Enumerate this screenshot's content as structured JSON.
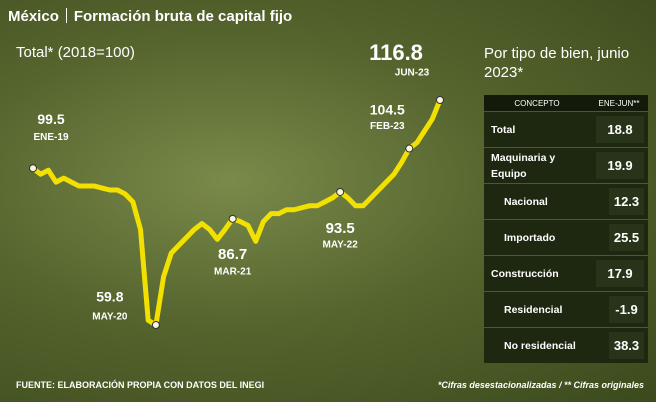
{
  "header": {
    "country": "México",
    "title": "Formación bruta de capital fijo"
  },
  "chart_data": {
    "type": "line",
    "subtitle": "Total* (2018=100)",
    "color": "#f2e000",
    "categories": [
      "ENE-19",
      null,
      null,
      null,
      null,
      null,
      null,
      null,
      null,
      null,
      null,
      null,
      null,
      null,
      null,
      null,
      "MAY-20",
      null,
      null,
      null,
      null,
      null,
      null,
      null,
      null,
      null,
      "MAR-21",
      null,
      null,
      null,
      null,
      null,
      null,
      null,
      null,
      null,
      null,
      null,
      null,
      null,
      "MAY-22",
      null,
      null,
      null,
      null,
      null,
      null,
      null,
      null,
      "FEB-23",
      null,
      null,
      null,
      "JUN-23"
    ],
    "values": [
      99.5,
      98,
      99,
      96,
      97,
      96,
      95,
      95,
      95,
      94.5,
      94,
      94,
      93,
      91,
      84,
      61,
      59.8,
      72,
      78,
      80,
      82,
      84,
      85.5,
      84,
      81.5,
      84,
      86.7,
      86,
      85,
      81,
      86,
      88,
      88,
      89,
      89,
      89.5,
      90,
      90,
      91,
      92,
      93.5,
      92,
      90,
      90,
      92,
      94,
      96,
      98,
      101,
      104.5,
      106,
      109,
      112,
      116.8
    ]
  },
  "table": {
    "title": "Por tipo de bien, junio 2023*",
    "columns": [
      "CONCEPTO",
      "ENE-JUN**"
    ],
    "rows": [
      [
        "Total",
        "18.8"
      ],
      [
        "Maquinaria y Equipo",
        "19.9"
      ],
      [
        "Nacional",
        "12.3"
      ],
      [
        "Importado",
        "25.5"
      ],
      [
        "Construcción",
        "17.9"
      ],
      [
        "Residencial",
        "-1.9"
      ],
      [
        "No residencial",
        "38.3"
      ]
    ]
  },
  "footer": {
    "source": "FUENTE: ELABORACIÓN PROPIA CON DATOS DEL INEGI",
    "note": "*Cifras desestacionalizadas / ** Cifras originales"
  }
}
